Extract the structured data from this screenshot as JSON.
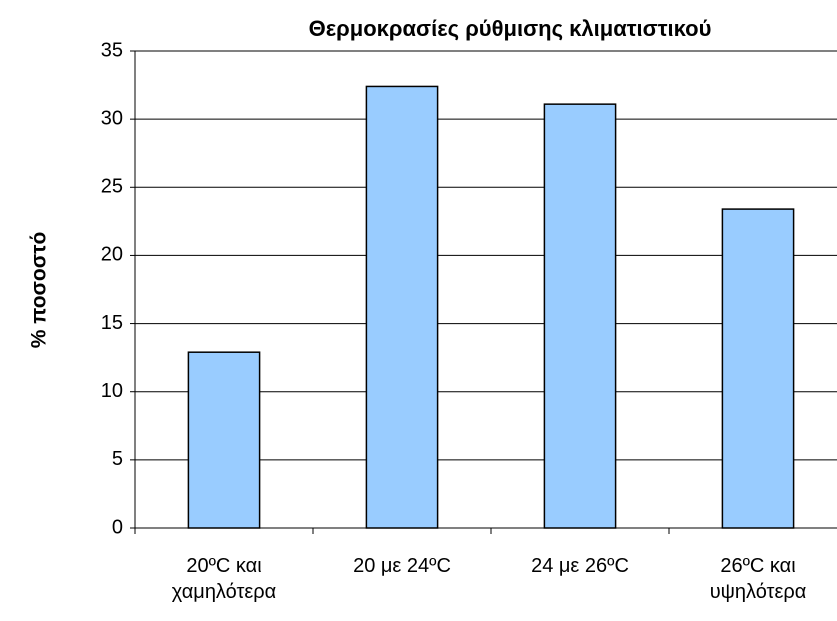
{
  "chart_data": {
    "type": "bar",
    "title": "Θερμοκρασίες ρύθμισης κλιματιστικού",
    "y_label": "% ποσοστό",
    "categories": [
      "20ºC και\nχαμηλότερα",
      "20 με 24ºC",
      "24 με 26ºC",
      "26ºC και\nυψηλότερα"
    ],
    "values": [
      12.9,
      32.4,
      31.1,
      23.4
    ],
    "color": "#99ccff",
    "ylim": [
      0,
      35
    ],
    "yticks": [
      0,
      5,
      10,
      15,
      20,
      25,
      30,
      35
    ],
    "grid": true
  }
}
